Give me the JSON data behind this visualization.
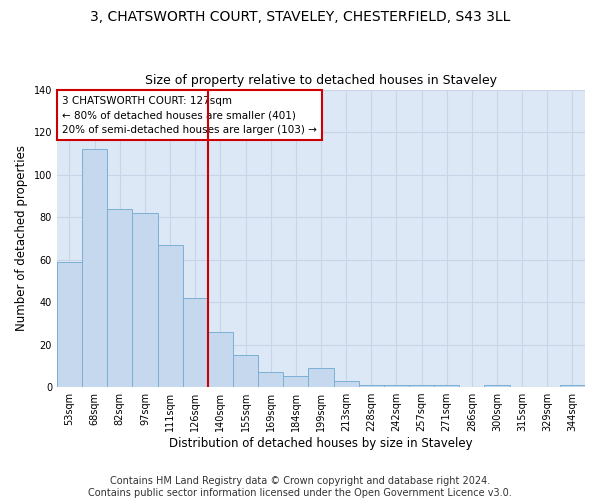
{
  "title": "3, CHATSWORTH COURT, STAVELEY, CHESTERFIELD, S43 3LL",
  "subtitle": "Size of property relative to detached houses in Staveley",
  "xlabel": "Distribution of detached houses by size in Staveley",
  "ylabel": "Number of detached properties",
  "bar_labels": [
    "53sqm",
    "68sqm",
    "82sqm",
    "97sqm",
    "111sqm",
    "126sqm",
    "140sqm",
    "155sqm",
    "169sqm",
    "184sqm",
    "199sqm",
    "213sqm",
    "228sqm",
    "242sqm",
    "257sqm",
    "271sqm",
    "286sqm",
    "300sqm",
    "315sqm",
    "329sqm",
    "344sqm"
  ],
  "bar_values": [
    59,
    112,
    84,
    82,
    67,
    42,
    26,
    15,
    7,
    5,
    9,
    3,
    1,
    1,
    1,
    1,
    0,
    1,
    0,
    0,
    1
  ],
  "bar_color": "#c5d8ed",
  "bar_edge_color": "#7aafd4",
  "vline_x": 5.5,
  "vline_color": "#cc0000",
  "annotation_text": "3 CHATSWORTH COURT: 127sqm\n← 80% of detached houses are smaller (401)\n20% of semi-detached houses are larger (103) →",
  "annotation_box_color": "#ffffff",
  "annotation_box_edge": "#cc0000",
  "ylim": [
    0,
    140
  ],
  "yticks": [
    0,
    20,
    40,
    60,
    80,
    100,
    120,
    140
  ],
  "grid_color": "#c8d4e8",
  "background_color": "#dce8f5",
  "footer_text": "Contains HM Land Registry data © Crown copyright and database right 2024.\nContains public sector information licensed under the Open Government Licence v3.0.",
  "title_fontsize": 10,
  "subtitle_fontsize": 9,
  "label_fontsize": 8.5,
  "tick_fontsize": 7,
  "footer_fontsize": 7,
  "annotation_fontsize": 7.5
}
